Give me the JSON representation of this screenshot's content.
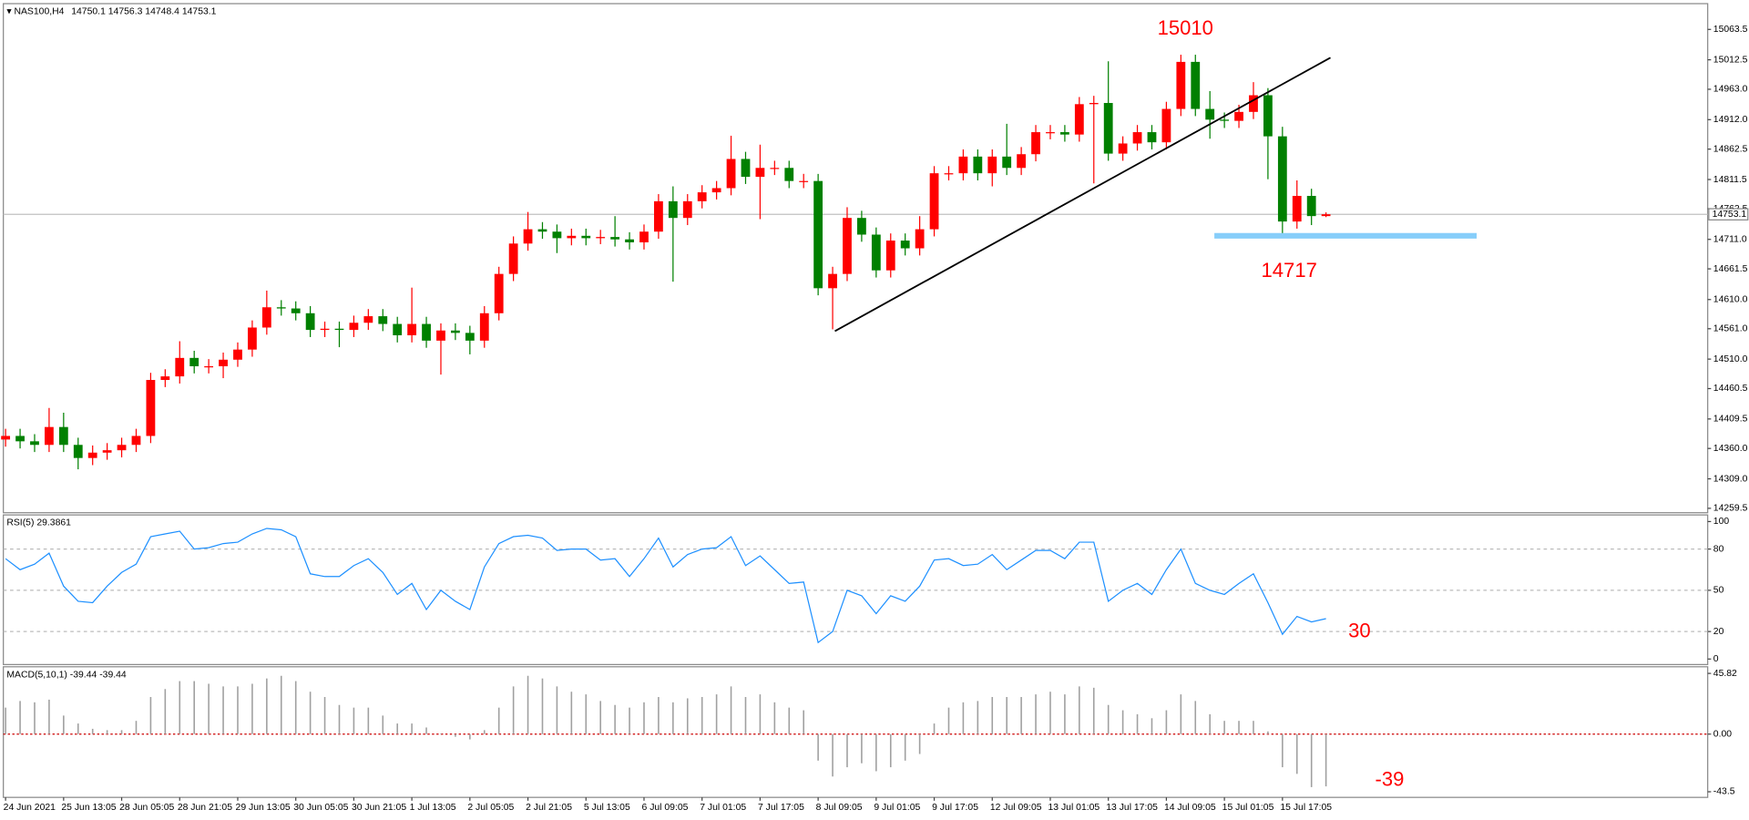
{
  "chart_data": [
    {
      "type": "candlestick",
      "symbol": "NAS100,H4",
      "categories": [
        "24 Jun 2021",
        null,
        null,
        null,
        "25 Jun 13:05",
        null,
        null,
        null,
        "28 Jun 05:05",
        null,
        null,
        null,
        "28 Jun 21:05",
        null,
        null,
        null,
        "29 Jun 13:05",
        null,
        null,
        null,
        "30 Jun 05:05",
        null,
        null,
        null,
        "30 Jun 21:05",
        null,
        null,
        null,
        "1 Jul 13:05",
        null,
        null,
        null,
        "2 Jul 05:05",
        null,
        null,
        null,
        "2 Jul 21:05",
        null,
        null,
        null,
        "5 Jul 13:05",
        null,
        null,
        null,
        "6 Jul 09:05",
        null,
        null,
        null,
        "7 Jul 01:05",
        null,
        null,
        null,
        "7 Jul 17:05",
        null,
        null,
        null,
        "8 Jul 09:05",
        null,
        null,
        null,
        "9 Jul 01:05",
        null,
        null,
        null,
        "9 Jul 17:05",
        null,
        null,
        null,
        "12 Jul 09:05",
        null,
        null,
        null,
        "13 Jul 01:05",
        null,
        null,
        null,
        "13 Jul 17:05",
        null,
        null,
        null,
        "14 Jul 09:05",
        null,
        null,
        null,
        "15 Jul 01:05",
        null,
        null,
        null,
        "15 Jul 17:05",
        null,
        null,
        null
      ],
      "open": [
        14375,
        14381,
        14372,
        14366,
        14396,
        14366,
        14344,
        14353,
        14357,
        14366,
        14381,
        14475,
        14481,
        14512,
        14498,
        14498,
        14509,
        14526,
        14563,
        14597,
        14595,
        14587,
        14559,
        14561,
        14559,
        14571,
        14582,
        14569,
        14550,
        14569,
        14541,
        14558,
        14554,
        14541,
        14587,
        14653,
        14704,
        14728,
        14724,
        14713,
        14717,
        14713,
        14715,
        14711,
        14706,
        14724,
        14775,
        14747,
        14775,
        14790,
        14797,
        14846,
        14816,
        14831,
        14831,
        14809,
        14809,
        14629,
        14653,
        14747,
        14719,
        14659,
        14709,
        14696,
        14728,
        14822,
        14822,
        14850,
        14822,
        14850,
        14831,
        14854,
        14891,
        14891,
        14887,
        14938,
        14940,
        14855,
        14872,
        14891,
        14874,
        14930,
        15009,
        14930,
        14912,
        14910,
        14925,
        14953,
        14884,
        14741,
        14784,
        14750.1
      ],
      "high": [
        14393,
        14393,
        14384,
        14428,
        14420,
        14378,
        14365,
        14369,
        14378,
        14393,
        14487,
        14493,
        14540,
        14524,
        14510,
        14521,
        14538,
        14575,
        14625,
        14609,
        14607,
        14599,
        14573,
        14573,
        14583,
        14594,
        14594,
        14581,
        14630,
        14581,
        14570,
        14570,
        14566,
        14599,
        14665,
        14716,
        14757,
        14740,
        14736,
        14729,
        14729,
        14727,
        14750,
        14723,
        14736,
        14787,
        14800,
        14787,
        14802,
        14809,
        14885,
        14858,
        14870,
        14843,
        14843,
        14821,
        14821,
        14665,
        14765,
        14759,
        14731,
        14721,
        14721,
        14750,
        14834,
        14834,
        14862,
        14862,
        14862,
        14905,
        14866,
        14903,
        14903,
        14903,
        14950,
        14952,
        15010,
        14884,
        14903,
        14903,
        14942,
        15021,
        15021,
        14960,
        14924,
        14937,
        14975,
        14965,
        14900,
        14810,
        14796,
        14756.3
      ],
      "low": [
        14363,
        14360,
        14354,
        14354,
        14354,
        14325,
        14332,
        14341,
        14345,
        14354,
        14369,
        14463,
        14469,
        14486,
        14486,
        14478,
        14497,
        14514,
        14551,
        14583,
        14575,
        14547,
        14547,
        14530,
        14547,
        14559,
        14557,
        14538,
        14538,
        14529,
        14484,
        14542,
        14518,
        14529,
        14575,
        14641,
        14692,
        14712,
        14688,
        14701,
        14701,
        14703,
        14699,
        14694,
        14694,
        14712,
        14640,
        14735,
        14763,
        14778,
        14785,
        14804,
        14745,
        14819,
        14797,
        14797,
        14617,
        14560,
        14641,
        14707,
        14647,
        14647,
        14684,
        14684,
        14716,
        14810,
        14810,
        14810,
        14800,
        14819,
        14819,
        14842,
        14879,
        14875,
        14875,
        14805,
        14843,
        14843,
        14860,
        14862,
        14862,
        14918,
        14918,
        14880,
        14898,
        14898,
        14913,
        14812,
        14717,
        14729,
        14735,
        14748.4
      ],
      "close": [
        14381,
        14372,
        14366,
        14396,
        14366,
        14344,
        14353,
        14357,
        14366,
        14381,
        14475,
        14481,
        14512,
        14498,
        14498,
        14509,
        14526,
        14563,
        14597,
        14595,
        14587,
        14559,
        14561,
        14559,
        14571,
        14582,
        14569,
        14550,
        14569,
        14541,
        14558,
        14554,
        14541,
        14587,
        14653,
        14704,
        14728,
        14724,
        14713,
        14717,
        14713,
        14715,
        14711,
        14706,
        14724,
        14775,
        14747,
        14775,
        14790,
        14797,
        14846,
        14816,
        14831,
        14831,
        14809,
        14809,
        14629,
        14653,
        14747,
        14719,
        14659,
        14709,
        14696,
        14728,
        14822,
        14822,
        14850,
        14822,
        14850,
        14831,
        14854,
        14891,
        14891,
        14887,
        14938,
        14940,
        14855,
        14872,
        14891,
        14874,
        14930,
        15009,
        14930,
        14912,
        14910,
        14925,
        14953,
        14884,
        14741,
        14784,
        14750.1,
        14753.1
      ],
      "up_color": "#ff0000",
      "down_color": "#008000",
      "ylim": [
        14254,
        15103
      ],
      "yticks": [
        15063.5,
        15012.5,
        {
          "value": 14963,
          "label": "14963.0"
        },
        {
          "value": 14912,
          "label": "14912.0"
        },
        14862.5,
        14811.5,
        14762.5,
        {
          "value": 14711,
          "label": "14711.0"
        },
        14661.5,
        {
          "value": 14610,
          "label": "14610.0"
        },
        {
          "value": 14561,
          "label": "14561.0"
        },
        {
          "value": 14510,
          "label": "14510.0"
        },
        14460.5,
        14409.5,
        {
          "value": 14360,
          "label": "14360.0"
        },
        {
          "value": 14309,
          "label": "14309.0"
        },
        14259.5
      ],
      "grid": false,
      "trendline": [
        14557,
        15016
      ],
      "annotations": {
        "high": 15010,
        "support": 14717
      },
      "support_color": "#87cefa"
    },
    {
      "type": "line",
      "name": "RSI(5)",
      "color": "#1e90ff",
      "values": [
        73,
        65,
        69,
        77,
        53,
        42,
        41,
        53,
        63,
        69,
        89,
        91,
        93,
        80,
        81,
        84,
        85,
        91,
        95,
        94,
        89,
        62,
        60,
        60,
        68,
        73,
        63,
        47,
        55,
        36,
        50,
        42,
        36,
        67,
        84,
        89,
        90,
        88,
        79,
        80,
        80,
        72,
        73,
        60,
        73,
        88,
        67,
        76,
        80,
        81,
        89,
        68,
        75,
        65,
        55,
        56,
        12,
        20,
        50,
        46,
        33,
        46,
        42,
        53,
        72,
        73,
        68,
        69,
        76,
        65,
        72,
        79,
        79,
        73,
        85,
        85,
        42,
        50,
        55,
        47,
        65,
        80,
        55,
        50,
        47,
        55,
        62,
        41,
        18,
        31,
        27,
        29.3861
      ],
      "ylim": [
        -4,
        104
      ],
      "yticks": [
        100,
        80,
        50,
        20,
        0
      ],
      "grid": true,
      "annotation": 30
    },
    {
      "type": "bar",
      "name": "MACD(5,10,1)",
      "color": "#a0a0a0",
      "values": [
        20,
        25,
        24,
        26,
        14,
        8,
        4,
        3,
        3,
        10,
        28,
        34,
        40,
        40,
        38,
        36,
        36,
        38,
        42,
        44,
        40,
        32,
        28,
        22,
        20,
        20,
        14,
        8,
        8,
        5,
        0.5,
        -2,
        -4,
        3,
        20,
        36,
        44,
        42,
        36,
        32,
        30,
        25,
        22,
        20,
        24,
        28,
        24,
        27,
        28,
        30,
        36,
        28,
        30,
        24,
        20,
        18,
        -20,
        -32,
        -25,
        -22,
        -28,
        -25,
        -20,
        -15,
        8,
        20,
        24,
        25,
        28,
        28,
        28,
        30,
        32,
        30,
        36,
        35,
        22,
        18,
        15,
        12,
        18,
        30,
        25,
        15,
        10,
        10,
        10,
        2,
        -25,
        -30,
        -40,
        -39.44
      ],
      "ylim": [
        -46.9,
        48.3
      ],
      "yticks": [
        45.82,
        {
          "value": 0,
          "label": "0.00"
        },
        -43.5
      ],
      "zero_line_color": "#cc0000",
      "annotation": -39
    }
  ]
}
